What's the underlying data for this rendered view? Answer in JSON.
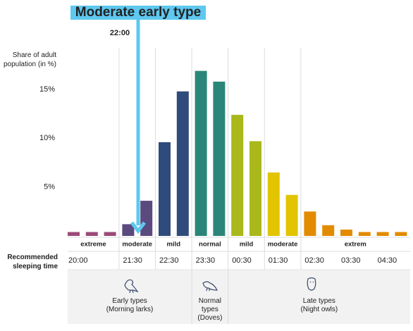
{
  "chart_data": {
    "type": "bar",
    "title": "Moderate early type",
    "marker_label": "22:00",
    "y_label": "Share of adult population (in %)",
    "row_label": "Recommended sleeping time",
    "ylim": [
      0,
      15
    ],
    "yticks": [
      {
        "value": 5,
        "label": "5%"
      },
      {
        "value": 10,
        "label": "10%"
      },
      {
        "value": 15,
        "label": "15%"
      }
    ],
    "groups": [
      {
        "label": "extreme",
        "color": "#9c4a78",
        "values": [
          0.4,
          0.4,
          0.4
        ]
      },
      {
        "label": "moderate",
        "color": "#5a4a7e",
        "values": [
          1.2,
          3.6
        ]
      },
      {
        "label": "mild",
        "color": "#2f4b7c",
        "values": [
          9.6,
          14.8
        ]
      },
      {
        "label": "normal",
        "color": "#2b8679",
        "values": [
          16.9,
          15.8
        ]
      },
      {
        "label": "mild",
        "color": "#a9b81a",
        "values": [
          12.4,
          9.7
        ]
      },
      {
        "label": "moderate",
        "color": "#e2c400",
        "values": [
          6.5,
          4.2
        ]
      },
      {
        "label": "extrem",
        "color": "#e38b00",
        "values": [
          2.5,
          1.1,
          0.65,
          0.4,
          0.4,
          0.4
        ]
      }
    ],
    "time_labels": [
      "20:00",
      "21:30",
      "22:30",
      "23:30",
      "00:30",
      "01:30",
      "02:30",
      "03:30",
      "04:30"
    ],
    "types": [
      {
        "lines": [
          "Early types",
          "(Morning larks)"
        ]
      },
      {
        "lines": [
          "Normal",
          "types",
          "(Doves)"
        ]
      },
      {
        "lines": [
          "Late types",
          "(Night owls)"
        ]
      }
    ]
  }
}
